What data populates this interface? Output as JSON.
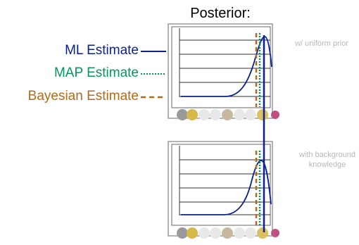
{
  "title": "Posterior:",
  "legend": {
    "ml": "ML Estimate",
    "map": "MAP Estimate",
    "bayes": "Bayesian Estimate"
  },
  "notes": {
    "top": "w/ uniform prior",
    "bottom": "with background knowledge"
  }
}
